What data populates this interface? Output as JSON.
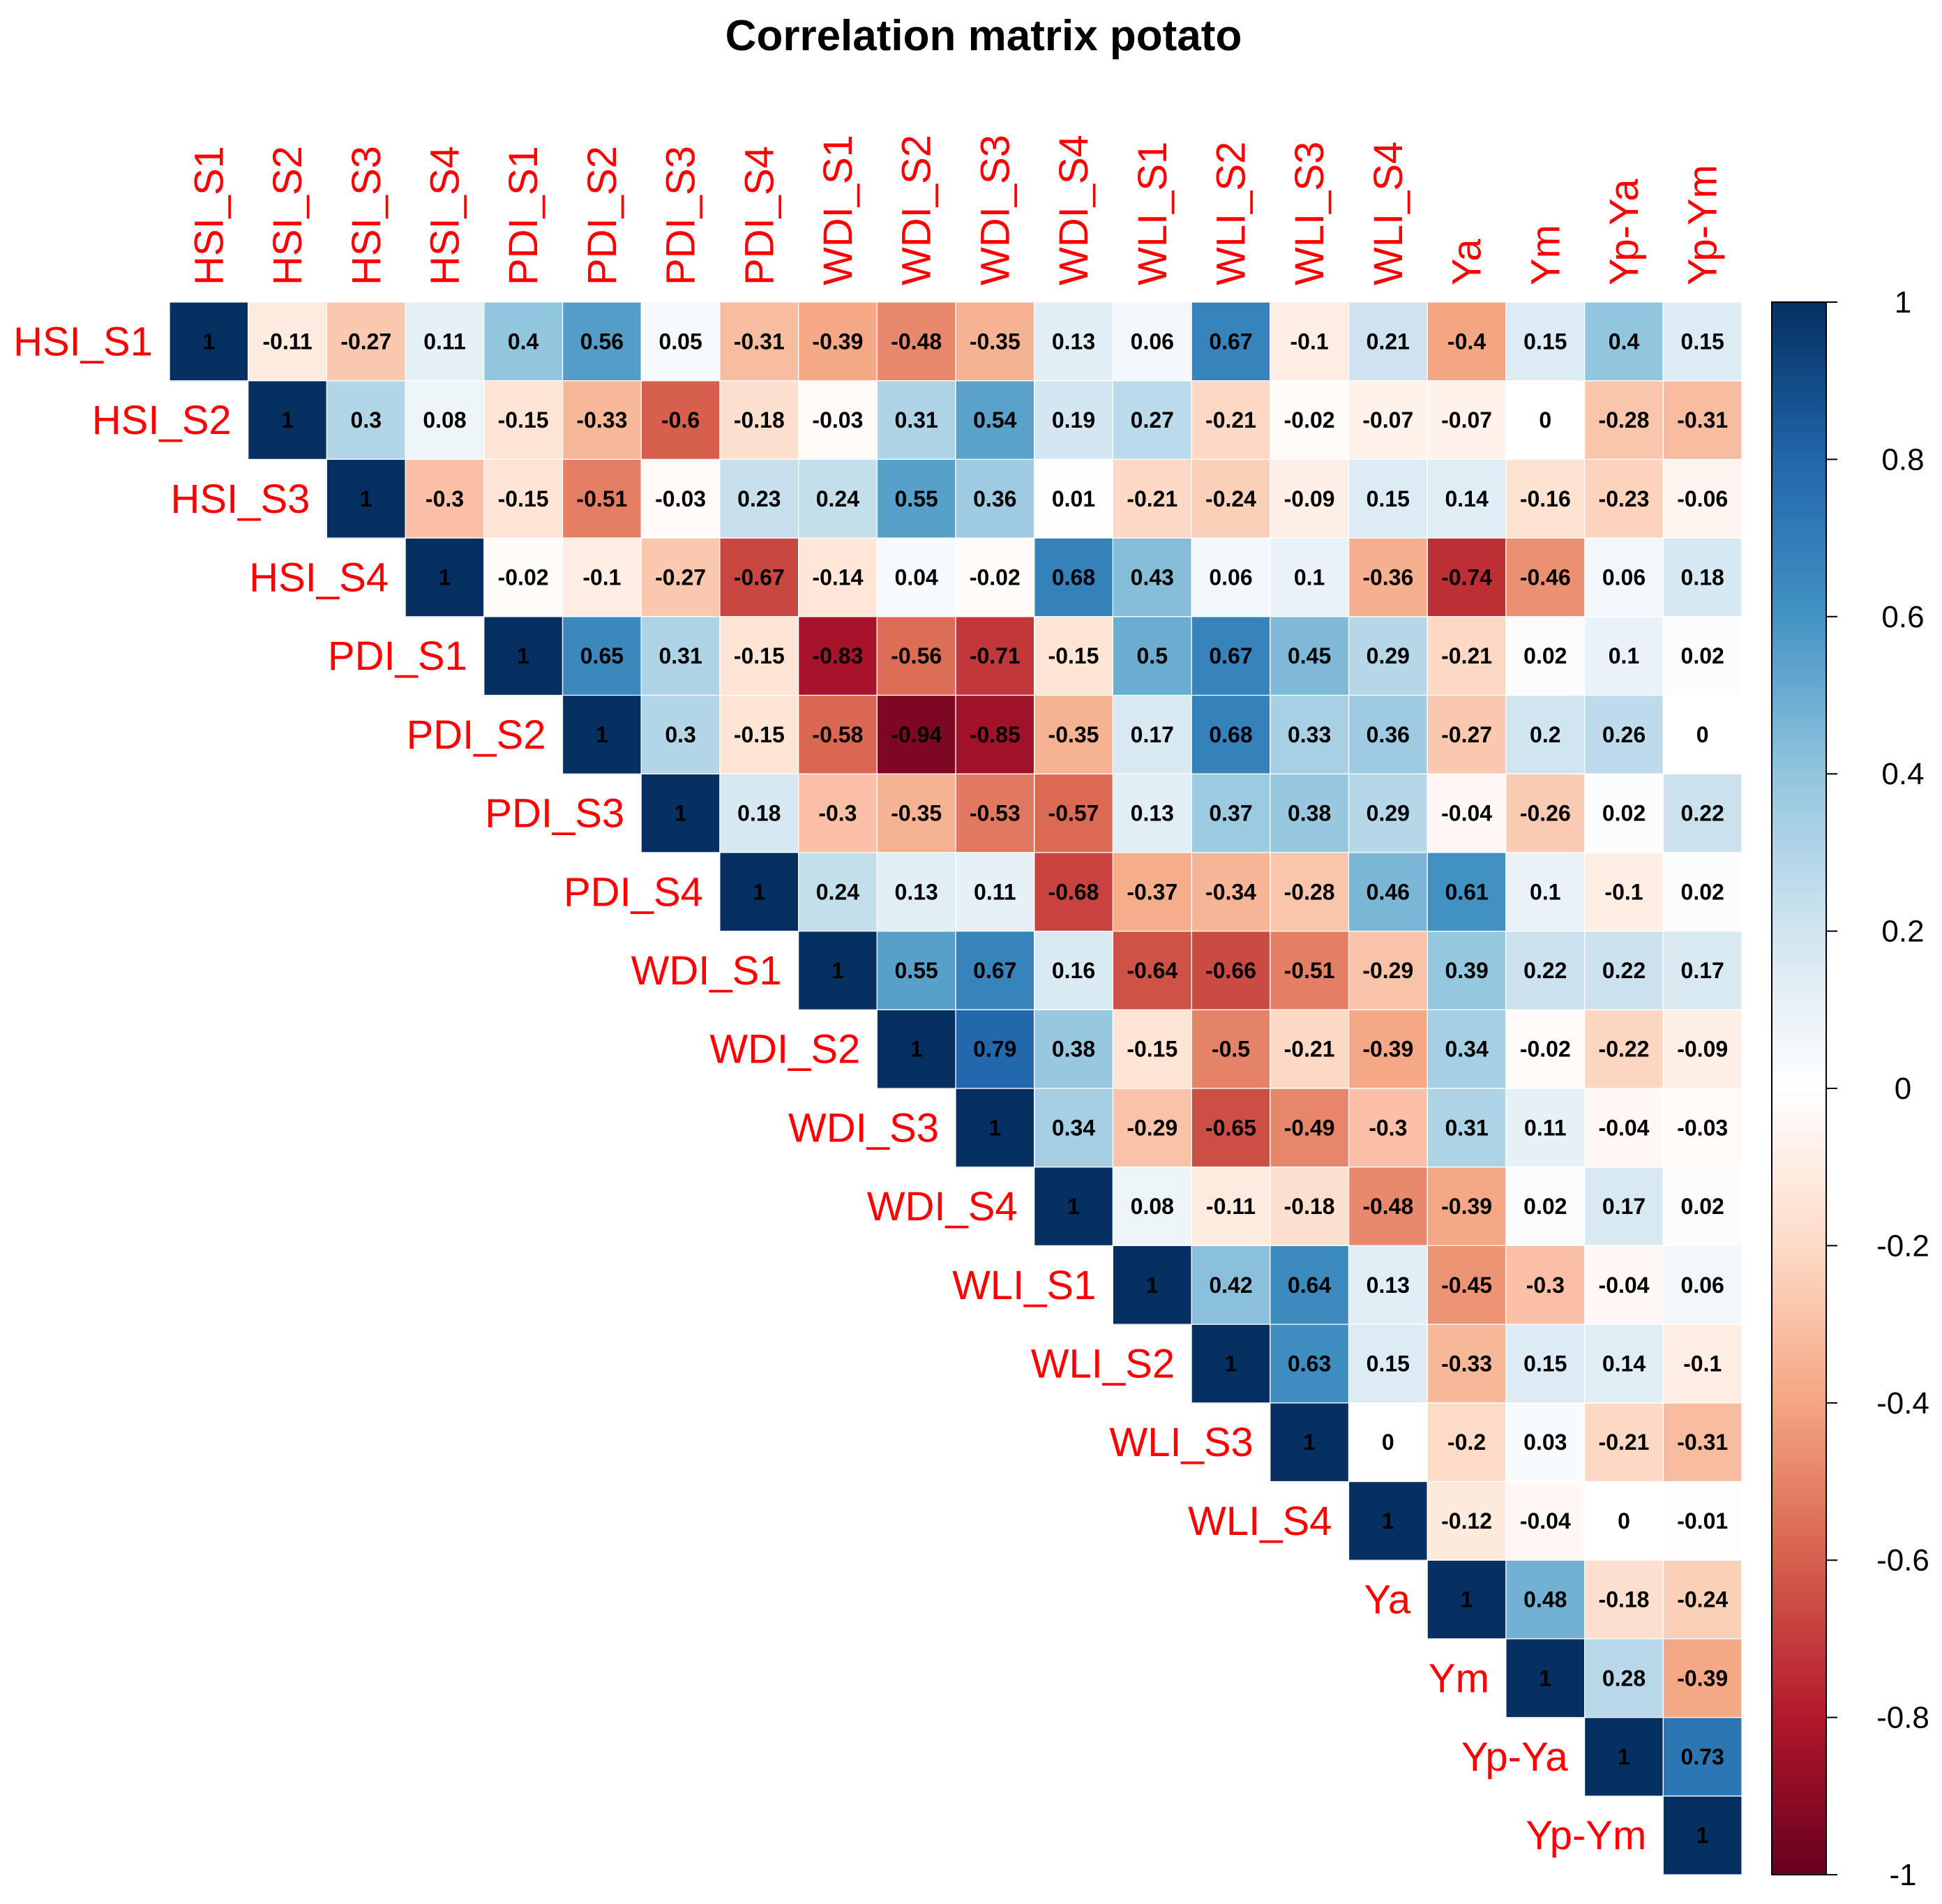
{
  "chart_data": {
    "type": "heatmap",
    "title": "Correlation matrix potato",
    "layout": "upper-triangle",
    "variables": [
      "HSI_S1",
      "HSI_S2",
      "HSI_S3",
      "HSI_S4",
      "PDI_S1",
      "PDI_S2",
      "PDI_S3",
      "PDI_S4",
      "WDI_S1",
      "WDI_S2",
      "WDI_S3",
      "WDI_S4",
      "WLI_S1",
      "WLI_S2",
      "WLI_S3",
      "WLI_S4",
      "Ya",
      "Ym",
      "Yp-Ya",
      "Yp-Ym"
    ],
    "rows": [
      [
        1,
        -0.11,
        -0.27,
        0.11,
        0.4,
        0.56,
        0.05,
        -0.31,
        -0.39,
        -0.48,
        -0.35,
        0.13,
        0.06,
        0.67,
        -0.1,
        0.21,
        -0.4,
        0.15,
        0.4,
        0.15
      ],
      [
        1,
        0.3,
        0.08,
        -0.15,
        -0.33,
        -0.6,
        -0.18,
        -0.03,
        0.31,
        0.54,
        0.19,
        0.27,
        -0.21,
        -0.02,
        -0.07,
        -0.07,
        0,
        -0.28,
        -0.31
      ],
      [
        1,
        -0.3,
        -0.15,
        -0.51,
        -0.03,
        0.23,
        0.24,
        0.55,
        0.36,
        0.01,
        -0.21,
        -0.24,
        -0.09,
        0.15,
        0.14,
        -0.16,
        -0.23,
        -0.06
      ],
      [
        1,
        -0.02,
        -0.1,
        -0.27,
        -0.67,
        -0.14,
        0.04,
        -0.02,
        0.68,
        0.43,
        0.06,
        0.1,
        -0.36,
        -0.74,
        -0.46,
        0.06,
        0.18
      ],
      [
        1,
        0.65,
        0.31,
        -0.15,
        -0.83,
        -0.56,
        -0.71,
        -0.15,
        0.5,
        0.67,
        0.45,
        0.29,
        -0.21,
        0.02,
        0.1,
        0.02
      ],
      [
        1,
        0.3,
        -0.15,
        -0.58,
        -0.94,
        -0.85,
        -0.35,
        0.17,
        0.68,
        0.33,
        0.36,
        -0.27,
        0.2,
        0.26,
        0
      ],
      [
        1,
        0.18,
        -0.3,
        -0.35,
        -0.53,
        -0.57,
        0.13,
        0.37,
        0.38,
        0.29,
        -0.04,
        -0.26,
        0.02,
        0.22
      ],
      [
        1,
        0.24,
        0.13,
        0.11,
        -0.68,
        -0.37,
        -0.34,
        -0.28,
        0.46,
        0.61,
        0.1,
        -0.1,
        0.02
      ],
      [
        1,
        0.55,
        0.67,
        0.16,
        -0.64,
        -0.66,
        -0.51,
        -0.29,
        0.39,
        0.22,
        0.22,
        0.17
      ],
      [
        1,
        0.79,
        0.38,
        -0.15,
        -0.5,
        -0.21,
        -0.39,
        0.34,
        -0.02,
        -0.22,
        -0.09
      ],
      [
        1,
        0.34,
        -0.29,
        -0.65,
        -0.49,
        -0.3,
        0.31,
        0.11,
        -0.04,
        -0.03
      ],
      [
        1,
        0.08,
        -0.11,
        -0.18,
        -0.48,
        -0.39,
        0.02,
        0.17,
        0.02
      ],
      [
        1,
        0.42,
        0.64,
        0.13,
        -0.45,
        -0.3,
        -0.04,
        0.06
      ],
      [
        1,
        0.63,
        0.15,
        -0.33,
        0.15,
        0.14,
        -0.1
      ],
      [
        1,
        0,
        -0.2,
        0.03,
        -0.21,
        -0.31
      ],
      [
        1,
        -0.12,
        -0.04,
        0,
        -0.01
      ],
      [
        1,
        0.48,
        -0.18,
        -0.24
      ],
      [
        1,
        0.28,
        -0.39
      ],
      [
        1,
        0.73
      ],
      [
        1
      ]
    ],
    "colorbar": {
      "range": [
        -1,
        1
      ],
      "ticks": [
        "1",
        "0.8",
        "0.6",
        "0.4",
        "0.2",
        "0",
        "-0.2",
        "-0.4",
        "-0.6",
        "-0.8",
        "-1"
      ],
      "palette": [
        "#67001f",
        "#b2182b",
        "#d6604d",
        "#f4a582",
        "#fddbc7",
        "#ffffff",
        "#d1e5f0",
        "#92c5de",
        "#4393c3",
        "#2166ac",
        "#053061"
      ]
    },
    "label_color": "#ff0000"
  }
}
